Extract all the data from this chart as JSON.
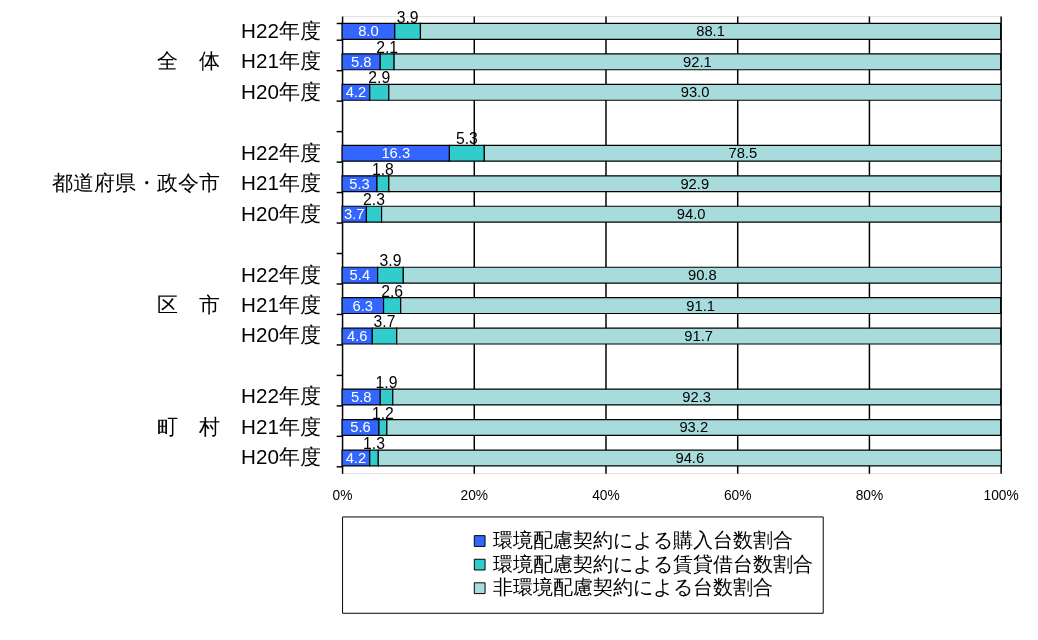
{
  "chart_data": {
    "type": "bar",
    "orientation": "horizontal",
    "stacked": true,
    "categories": [
      "H22年度",
      "全　体　H21年度",
      "H20年度",
      null,
      "H22年度",
      "都道府県・政令市　H21年度",
      "H20年度",
      null,
      "H22年度",
      "区　市　H21年度",
      "H20年度",
      null,
      "H22年度",
      "町　村　H21年度",
      "H20年度"
    ],
    "series": [
      {
        "name": "環境配慮契約による購入台数割合",
        "color": "#3366ff",
        "values": [
          8.0,
          5.8,
          4.2,
          null,
          16.3,
          5.3,
          3.7,
          null,
          5.4,
          6.3,
          4.6,
          null,
          5.8,
          5.6,
          4.2
        ],
        "value_labels": [
          "8.0",
          "5.8",
          "4.2",
          null,
          "16.3",
          "5.3",
          "3.7",
          null,
          "5.4",
          "6.3",
          "4.6",
          null,
          "5.8",
          "5.6",
          "4.2"
        ]
      },
      {
        "name": "環境配慮契約による賃貸借台数割合",
        "color": "#33cccc",
        "values": [
          3.9,
          2.1,
          2.9,
          null,
          5.3,
          1.8,
          2.3,
          null,
          3.9,
          2.6,
          3.7,
          null,
          1.9,
          1.2,
          1.3
        ],
        "value_labels": [
          "3.9",
          "2.1",
          "2.9",
          null,
          "5.3",
          "1.8",
          "2.3",
          null,
          "3.9",
          "2.6",
          "3.7",
          null,
          "1.9",
          "1.2",
          "1.3"
        ]
      },
      {
        "name": "非環境配慮契約による台数割合",
        "color": "#a8dcdc",
        "values": [
          88.1,
          92.1,
          93.0,
          null,
          78.5,
          92.9,
          94.0,
          null,
          90.8,
          91.1,
          91.7,
          null,
          92.3,
          93.2,
          94.6
        ],
        "value_labels": [
          "88.1",
          "92.1",
          "93.0",
          null,
          "78.5",
          "92.9",
          "94.0",
          null,
          "90.8",
          "91.1",
          "91.7",
          null,
          "92.3",
          "93.2",
          "94.6"
        ]
      }
    ],
    "xlim": [
      0,
      100
    ],
    "xticks": [
      {
        "value": 0,
        "label": "0%"
      },
      {
        "value": 20,
        "label": "20%"
      },
      {
        "value": 40,
        "label": "40%"
      },
      {
        "value": 60,
        "label": "60%"
      },
      {
        "value": 80,
        "label": "80%"
      },
      {
        "value": 100,
        "label": "100%"
      }
    ],
    "grid": "x",
    "legend": "bottom"
  }
}
